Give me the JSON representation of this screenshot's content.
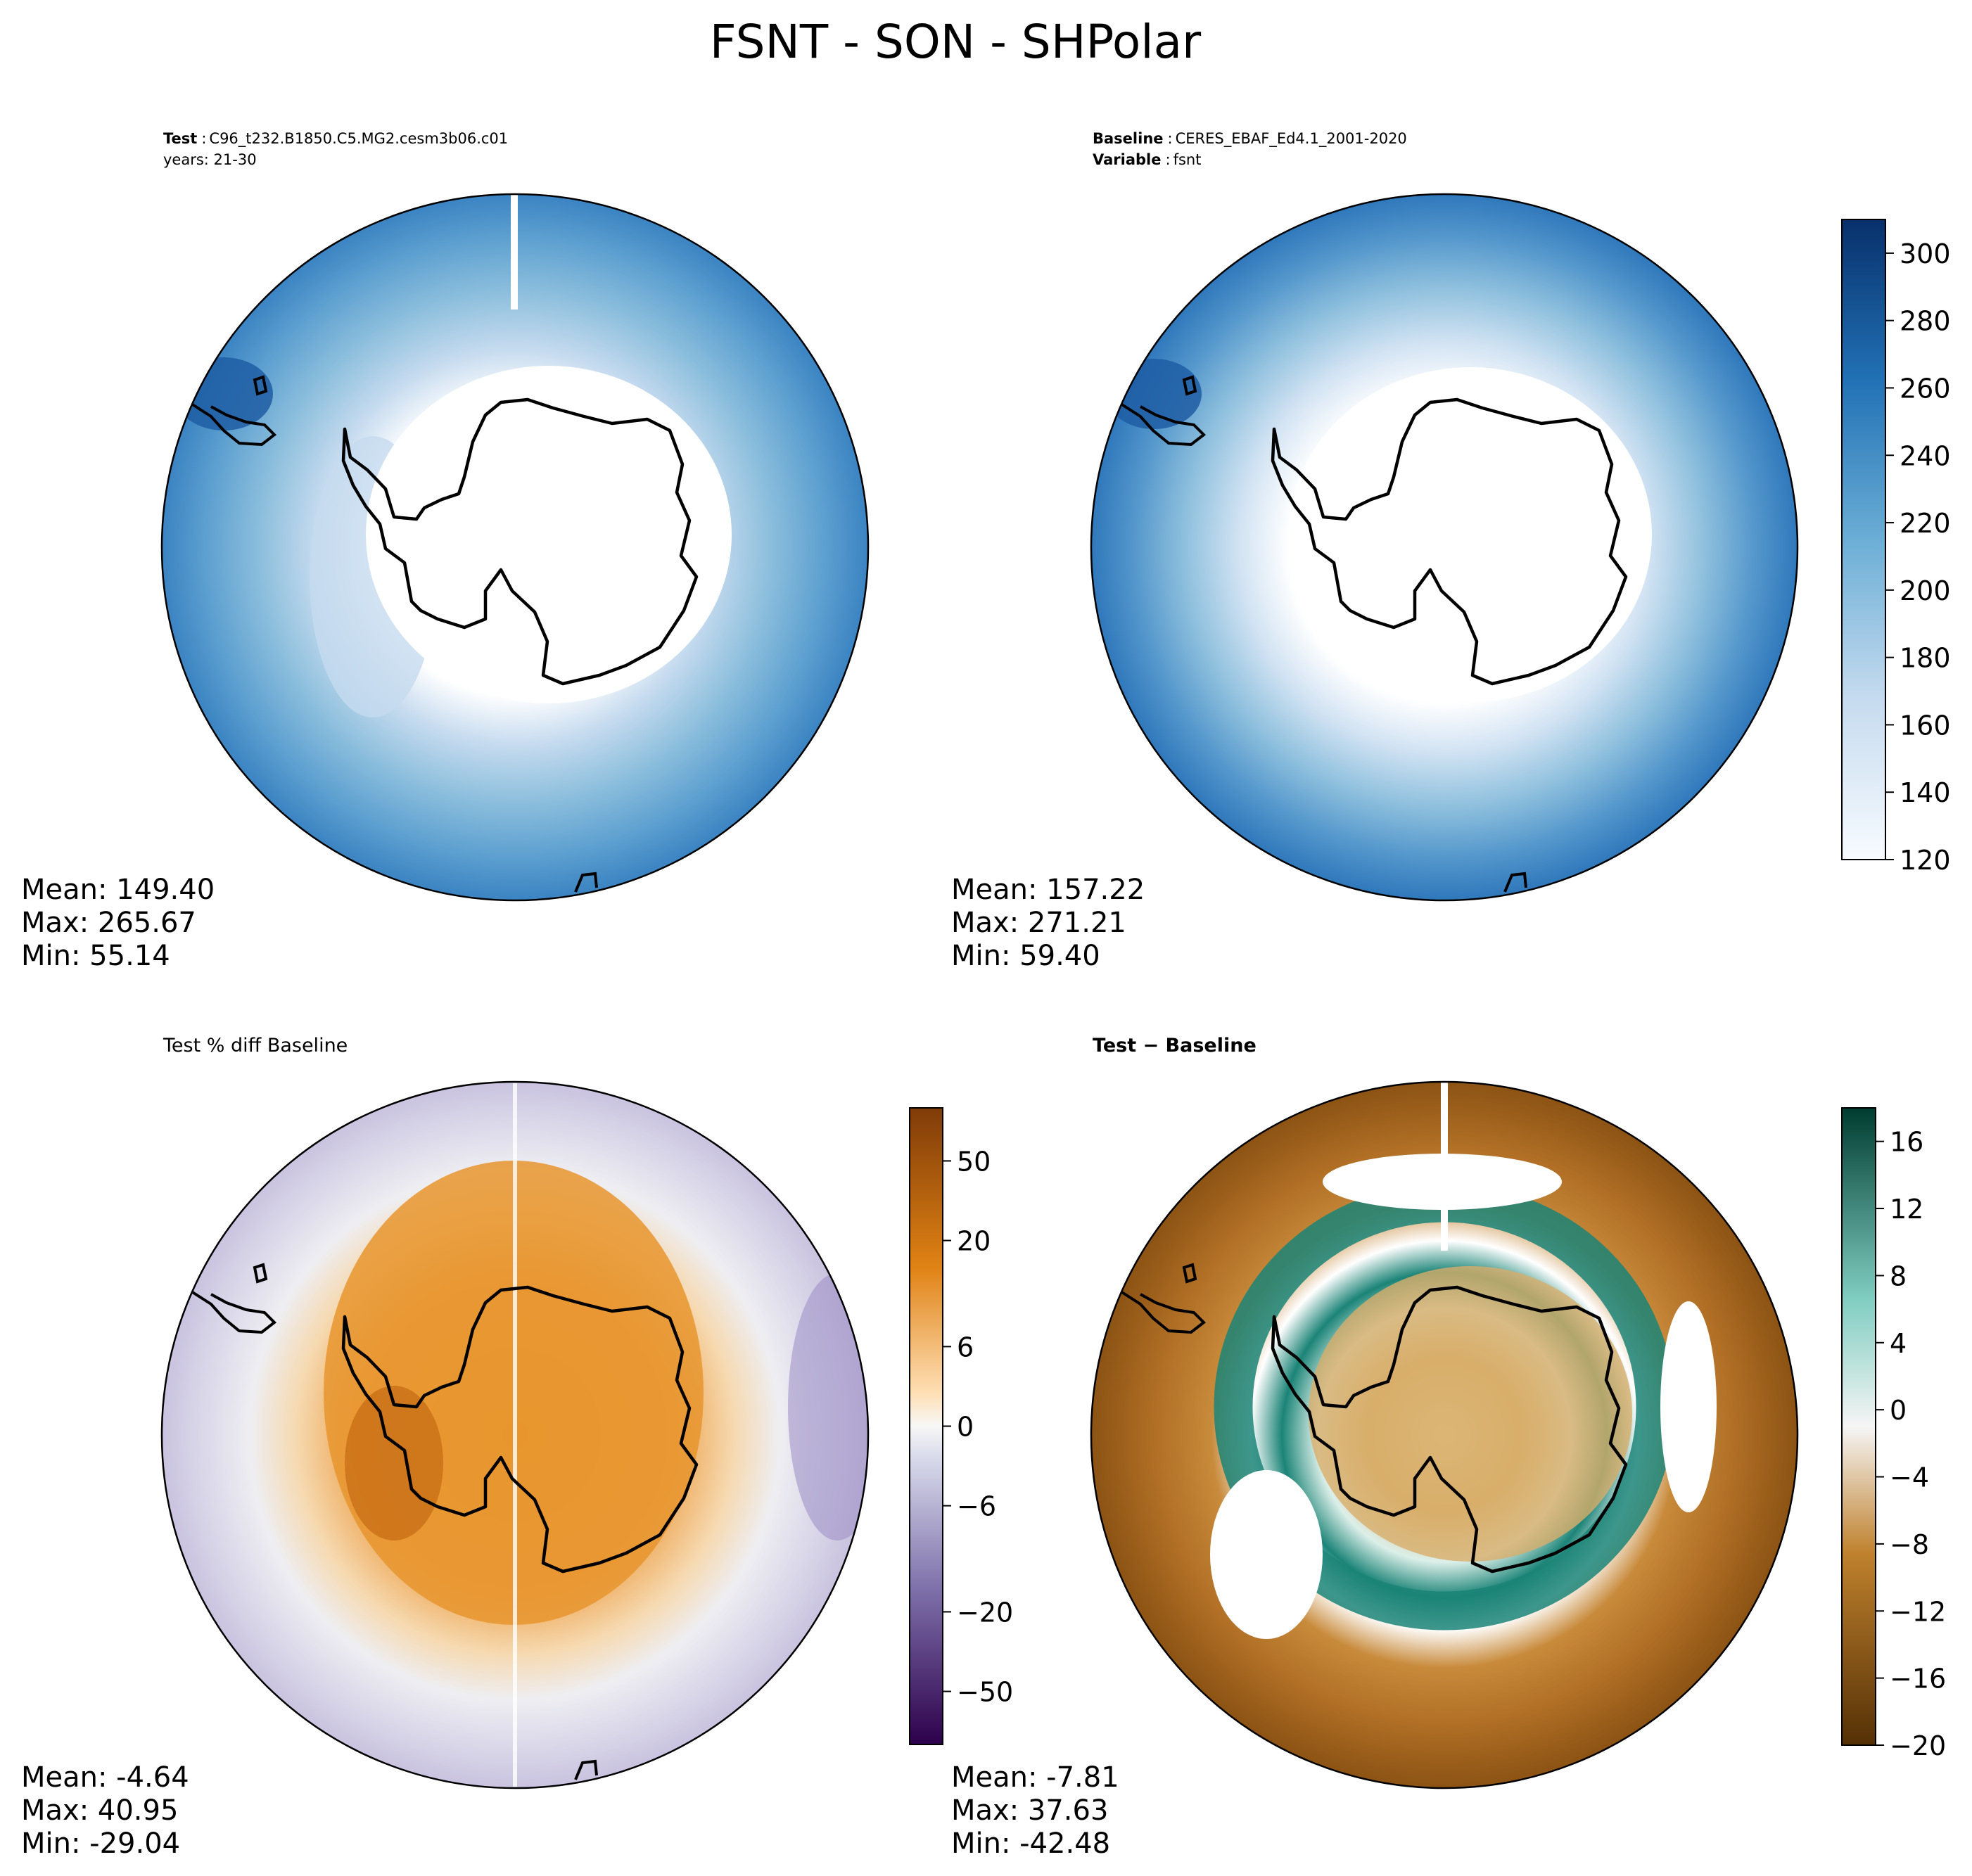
{
  "suptitle": "FSNT - SON - SHPolar",
  "panels": {
    "test": {
      "label_bold": "Test",
      "label_value": "C96_t232.B1850.C5.MG2.cesm3b06.c01",
      "line2": "years: 21-30",
      "stats": {
        "mean": "Mean: 149.40",
        "max": "Max: 265.67",
        "min": "Min: 55.14"
      }
    },
    "baseline": {
      "label_bold": "Baseline",
      "label_value": "CERES_EBAF_Ed4.1_2001-2020",
      "line2_bold": "Variable",
      "line2_value": "fsnt",
      "stats": {
        "mean": "Mean: 157.22",
        "max": "Max: 271.21",
        "min": "Min: 59.40"
      }
    },
    "pct_diff": {
      "title": "Test % diff Baseline",
      "stats": {
        "mean": "Mean: -4.64",
        "max": "Max: 40.95",
        "min": "Min: -29.04"
      }
    },
    "diff": {
      "title": "Test − Baseline",
      "stats": {
        "mean": "Mean: -7.81",
        "max": "Max: 37.63",
        "min": "Min: -42.48"
      }
    }
  },
  "chart_data": [
    {
      "type": "heatmap",
      "projection": "south-polar-stereographic",
      "panel": "test",
      "colormap": "Blues",
      "levels": [
        120,
        130,
        140,
        150,
        160,
        170,
        180,
        190,
        200,
        210,
        220,
        230,
        240,
        250,
        260,
        270,
        280,
        290,
        300,
        310
      ],
      "summary": {
        "mean": 149.4,
        "max": 265.67,
        "min": 55.14
      }
    },
    {
      "type": "heatmap",
      "projection": "south-polar-stereographic",
      "panel": "baseline",
      "colormap": "Blues",
      "levels": [
        120,
        130,
        140,
        150,
        160,
        170,
        180,
        190,
        200,
        210,
        220,
        230,
        240,
        250,
        260,
        270,
        280,
        290,
        300,
        310
      ],
      "colorbar": {
        "ticks": [
          "120",
          "140",
          "160",
          "180",
          "200",
          "220",
          "240",
          "260",
          "280",
          "300"
        ],
        "range": [
          120,
          310
        ]
      },
      "summary": {
        "mean": 157.22,
        "max": 271.21,
        "min": 59.4
      }
    },
    {
      "type": "heatmap",
      "projection": "south-polar-stereographic",
      "panel": "pct_diff",
      "colormap": "PuOr_r",
      "colorbar": {
        "ticks": [
          "−50",
          "−20",
          "−6",
          "0",
          "6",
          "20",
          "50"
        ],
        "boundaries": [
          -90,
          -70,
          -50,
          -40,
          -30,
          -20,
          -15,
          -10,
          -8,
          -6,
          -4,
          -2,
          0,
          2,
          4,
          6,
          8,
          10,
          15,
          20,
          30,
          40,
          50,
          70,
          90
        ]
      },
      "summary": {
        "mean": -4.64,
        "max": 40.95,
        "min": -29.04
      }
    },
    {
      "type": "heatmap",
      "projection": "south-polar-stereographic",
      "panel": "diff",
      "colormap": "BrBG",
      "levels": [
        -20,
        -18,
        -16,
        -14,
        -12,
        -10,
        -8,
        -6,
        -4,
        -2,
        0,
        2,
        4,
        6,
        8,
        10,
        12,
        14,
        16,
        18
      ],
      "colorbar": {
        "ticks": [
          "−20",
          "−16",
          "−12",
          "−8",
          "−4",
          "0",
          "4",
          "8",
          "12",
          "16"
        ],
        "range": [
          -20,
          18
        ]
      },
      "summary": {
        "mean": -7.81,
        "max": 37.63,
        "min": -42.48
      }
    }
  ]
}
